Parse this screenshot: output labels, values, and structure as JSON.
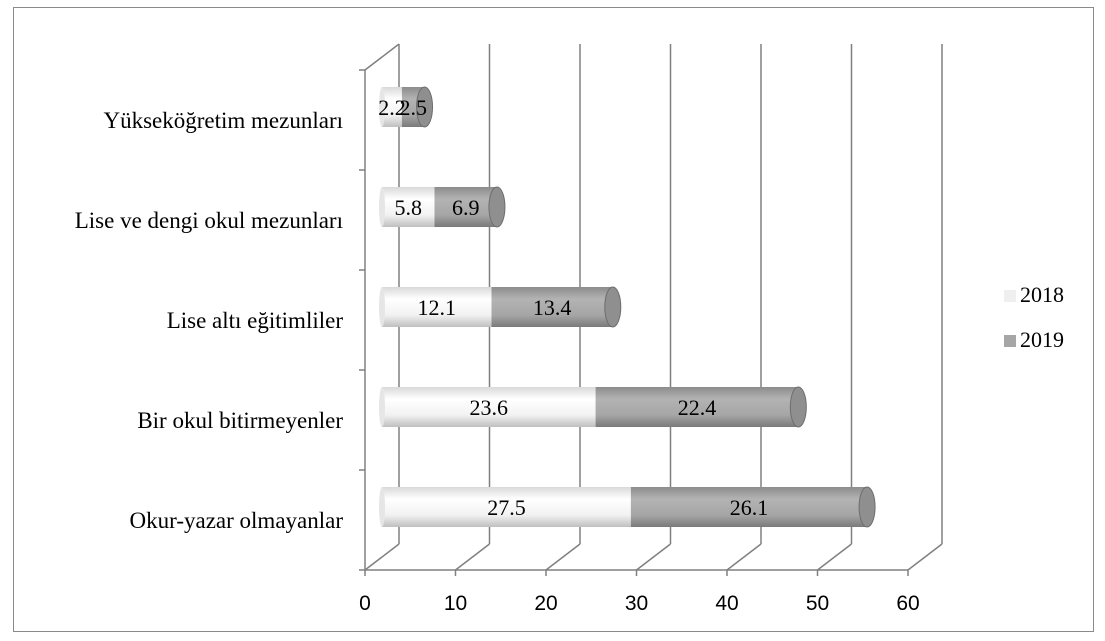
{
  "chart_data": {
    "type": "bar",
    "orientation": "horizontal",
    "stacked": true,
    "style": "3d-cylinder",
    "categories": [
      "Okur-yazar olmayanlar",
      "Bir okul bitirmeyenler",
      "Lise altı eğitimliler",
      "Lise ve dengi okul mezunları",
      "Yükseköğretim mezunları"
    ],
    "series": [
      {
        "name": "2018",
        "values": [
          27.5,
          23.6,
          12.1,
          5.8,
          2.2
        ],
        "labels": [
          "27.5",
          "23.6",
          "12.1",
          "5.8",
          "2.2"
        ],
        "color": "#efefef"
      },
      {
        "name": "2019",
        "values": [
          26.1,
          22.4,
          13.4,
          6.9,
          2.5
        ],
        "labels": [
          "26.1",
          "22.4",
          "13.4",
          "6.9",
          "2.5"
        ],
        "color": "#a6a6a6"
      }
    ],
    "xlim": [
      0,
      60
    ],
    "xticks": [
      "0",
      "10",
      "20",
      "30",
      "40",
      "50",
      "60"
    ],
    "grid": true,
    "legend_position": "right"
  }
}
